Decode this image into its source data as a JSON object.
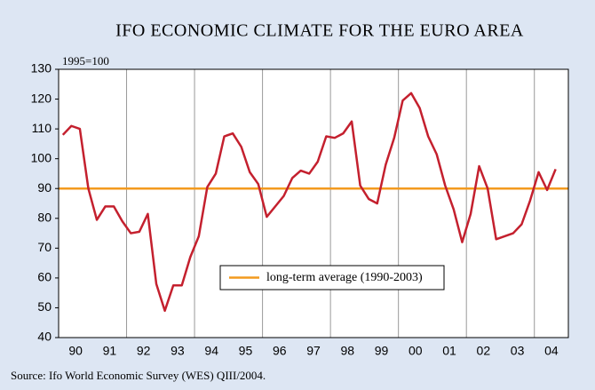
{
  "chart_data": {
    "type": "line",
    "title": "IFO ECONOMIC CLIMATE FOR THE EURO AREA",
    "y_note": "1995=100",
    "source": "Source: Ifo World Economic Survey (WES) QIII/2004.",
    "x": [
      1990.125,
      1990.375,
      1990.625,
      1990.875,
      1991.125,
      1991.375,
      1991.625,
      1991.875,
      1992.125,
      1992.375,
      1992.625,
      1992.875,
      1993.125,
      1993.375,
      1993.625,
      1993.875,
      1994.125,
      1994.375,
      1994.625,
      1994.875,
      1995.125,
      1995.375,
      1995.625,
      1995.875,
      1996.125,
      1996.375,
      1996.625,
      1996.875,
      1997.125,
      1997.375,
      1997.625,
      1997.875,
      1998.125,
      1998.375,
      1998.625,
      1998.875,
      1999.125,
      1999.375,
      1999.625,
      1999.875,
      2000.125,
      2000.375,
      2000.625,
      2000.875,
      2001.125,
      2001.375,
      2001.625,
      2001.875,
      2002.125,
      2002.375,
      2002.625,
      2002.875,
      2003.125,
      2003.375,
      2003.625,
      2003.875,
      2004.125,
      2004.375,
      2004.625
    ],
    "series": [
      {
        "name": "IFO economic climate",
        "color": "#c4202e",
        "values": [
          108,
          111,
          110,
          90,
          79.5,
          84,
          84,
          79,
          75,
          75.5,
          81.5,
          58,
          49,
          57.5,
          57.5,
          67,
          74,
          90.5,
          95,
          107.5,
          108.5,
          104,
          95.5,
          91.5,
          80.5,
          84,
          87.5,
          93.5,
          96,
          95,
          99,
          107.5,
          107,
          108.5,
          112.5,
          91,
          86.5,
          85,
          98,
          107,
          119.5,
          122,
          117,
          107.5,
          101.5,
          91,
          83,
          72,
          81.5,
          97.5,
          90,
          73,
          74,
          75,
          78,
          86,
          95.5,
          89.5,
          96.5
        ]
      }
    ],
    "reference_line": {
      "name": "long-term average (1990-2003)",
      "value": 90,
      "color": "#f39a1e"
    },
    "xlim": [
      1990,
      2005
    ],
    "xticks": [
      {
        "value": 1990.5,
        "label": "90"
      },
      {
        "value": 1991.5,
        "label": "91"
      },
      {
        "value": 1992.5,
        "label": "92"
      },
      {
        "value": 1993.5,
        "label": "93"
      },
      {
        "value": 1994.5,
        "label": "94"
      },
      {
        "value": 1995.5,
        "label": "95"
      },
      {
        "value": 1996.5,
        "label": "96"
      },
      {
        "value": 1997.5,
        "label": "97"
      },
      {
        "value": 1998.5,
        "label": "98"
      },
      {
        "value": 1999.5,
        "label": "99"
      },
      {
        "value": 2000.5,
        "label": "00"
      },
      {
        "value": 2001.5,
        "label": "01"
      },
      {
        "value": 2002.5,
        "label": "02"
      },
      {
        "value": 2003.5,
        "label": "03"
      },
      {
        "value": 2004.5,
        "label": "04"
      }
    ],
    "xgrid": [
      1992,
      1994,
      1996,
      1998,
      2000,
      2002,
      2004
    ],
    "ylim": [
      40,
      130
    ],
    "yticks": [
      40,
      50,
      60,
      70,
      80,
      90,
      100,
      110,
      120,
      130
    ]
  }
}
